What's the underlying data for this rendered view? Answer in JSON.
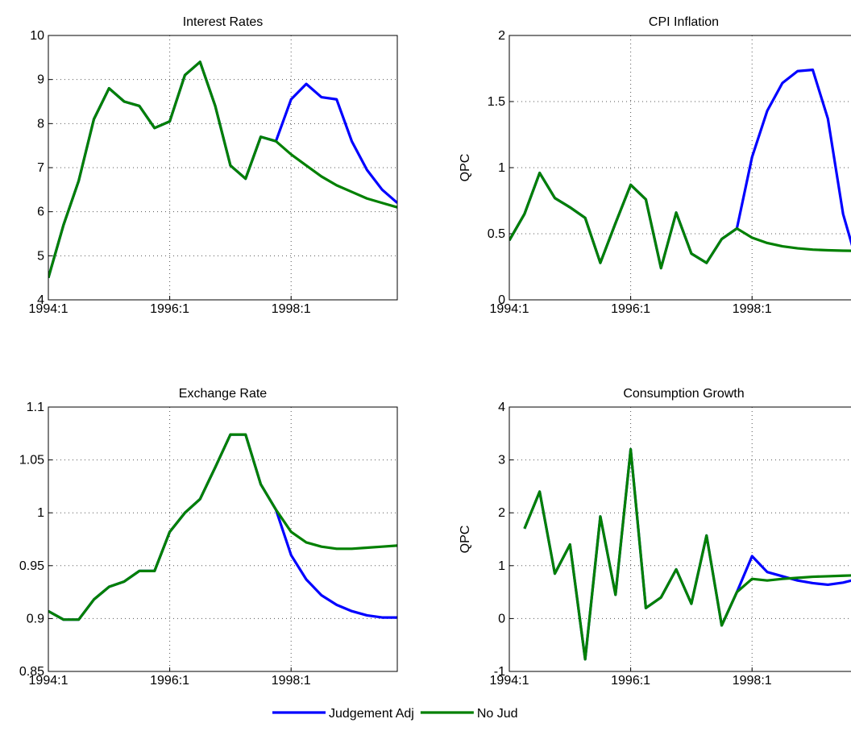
{
  "chart_data": [
    {
      "type": "line",
      "title": "Interest Rates",
      "categories": [
        "1994:1",
        null,
        null,
        null,
        null,
        null,
        null,
        null,
        "1996:1",
        null,
        null,
        null,
        null,
        null,
        null,
        null,
        "1998:1",
        null,
        null,
        null,
        null,
        null,
        null,
        null
      ],
      "series": [
        {
          "name": "Judgement Adj",
          "color": "#0000ff",
          "values": [
            4.5,
            5.7,
            6.7,
            8.1,
            8.8,
            8.5,
            8.4,
            7.9,
            8.05,
            9.1,
            9.4,
            8.4,
            7.05,
            6.75,
            7.7,
            7.6,
            8.55,
            8.9,
            8.6,
            8.55,
            7.6,
            6.95,
            6.5,
            6.2
          ]
        },
        {
          "name": "No Jud",
          "color": "#008000",
          "values": [
            4.5,
            5.7,
            6.7,
            8.1,
            8.8,
            8.5,
            8.4,
            7.9,
            8.05,
            9.1,
            9.4,
            8.4,
            7.05,
            6.75,
            7.7,
            7.6,
            7.3,
            7.05,
            6.8,
            6.6,
            6.45,
            6.3,
            6.2,
            6.1
          ]
        }
      ],
      "ylim": [
        4,
        10
      ],
      "yticks": [
        4,
        5,
        6,
        7,
        8,
        9,
        10
      ],
      "grid": true
    },
    {
      "type": "line",
      "title": "CPI Inflation",
      "ylabel": "QPC",
      "categories": [
        "1994:1",
        null,
        null,
        null,
        null,
        null,
        null,
        null,
        "1996:1",
        null,
        null,
        null,
        null,
        null,
        null,
        null,
        "1998:1",
        null,
        null,
        null,
        null,
        null,
        null,
        null
      ],
      "series": [
        {
          "name": "Judgement Adj",
          "color": "#0000ff",
          "values": [
            0.45,
            0.65,
            0.96,
            0.77,
            0.7,
            0.62,
            0.28,
            0.58,
            0.87,
            0.76,
            0.24,
            0.66,
            0.35,
            0.28,
            0.46,
            0.54,
            1.08,
            1.43,
            1.64,
            1.73,
            1.74,
            1.37,
            0.65,
            0.25
          ]
        },
        {
          "name": "No Jud",
          "color": "#008000",
          "values": [
            0.45,
            0.65,
            0.96,
            0.77,
            0.7,
            0.62,
            0.28,
            0.58,
            0.87,
            0.76,
            0.24,
            0.66,
            0.35,
            0.28,
            0.46,
            0.54,
            0.47,
            0.43,
            0.405,
            0.39,
            0.38,
            0.375,
            0.372,
            0.37
          ]
        }
      ],
      "ylim": [
        0,
        2
      ],
      "yticks": [
        0,
        0.5,
        1,
        1.5,
        2
      ],
      "grid": true
    },
    {
      "type": "line",
      "title": "Exchange Rate",
      "categories": [
        "1994:1",
        null,
        null,
        null,
        null,
        null,
        null,
        null,
        "1996:1",
        null,
        null,
        null,
        null,
        null,
        null,
        null,
        "1998:1",
        null,
        null,
        null,
        null,
        null,
        null,
        null
      ],
      "series": [
        {
          "name": "Judgement Adj",
          "color": "#0000ff",
          "values": [
            0.907,
            0.899,
            0.899,
            0.918,
            0.93,
            0.935,
            0.945,
            0.945,
            0.982,
            1.0,
            1.013,
            1.043,
            1.074,
            1.074,
            1.027,
            1.003,
            0.96,
            0.937,
            0.922,
            0.913,
            0.907,
            0.903,
            0.901,
            0.901
          ]
        },
        {
          "name": "No Jud",
          "color": "#008000",
          "values": [
            0.907,
            0.899,
            0.899,
            0.918,
            0.93,
            0.935,
            0.945,
            0.945,
            0.982,
            1.0,
            1.013,
            1.043,
            1.074,
            1.074,
            1.027,
            1.003,
            0.982,
            0.972,
            0.968,
            0.966,
            0.966,
            0.967,
            0.968,
            0.969
          ]
        }
      ],
      "ylim": [
        0.85,
        1.1
      ],
      "yticks": [
        0.85,
        0.9,
        0.95,
        1,
        1.05,
        1.1
      ],
      "grid": true
    },
    {
      "type": "line",
      "title": "Consumption Growth",
      "ylabel": "QPC",
      "categories": [
        "1994:1",
        null,
        null,
        null,
        null,
        null,
        null,
        null,
        "1996:1",
        null,
        null,
        null,
        null,
        null,
        null,
        null,
        "1998:1",
        null,
        null,
        null,
        null,
        null,
        null,
        null
      ],
      "series": [
        {
          "name": "Judgement Adj",
          "color": "#0000ff",
          "values": [
            null,
            1.7,
            2.4,
            0.85,
            1.4,
            -0.77,
            1.93,
            0.45,
            3.2,
            0.2,
            0.4,
            0.93,
            0.28,
            1.57,
            -0.13,
            0.5,
            1.18,
            0.88,
            0.8,
            0.72,
            0.67,
            0.64,
            0.68,
            0.75
          ]
        },
        {
          "name": "No Jud",
          "color": "#008000",
          "values": [
            null,
            1.7,
            2.4,
            0.85,
            1.4,
            -0.77,
            1.93,
            0.45,
            3.2,
            0.2,
            0.4,
            0.93,
            0.28,
            1.57,
            -0.13,
            0.5,
            0.75,
            0.72,
            0.75,
            0.77,
            0.79,
            0.8,
            0.81,
            0.82
          ]
        }
      ],
      "ylim": [
        -1,
        4
      ],
      "yticks": [
        -1,
        0,
        1,
        2,
        3,
        4
      ],
      "grid": true
    }
  ]
}
